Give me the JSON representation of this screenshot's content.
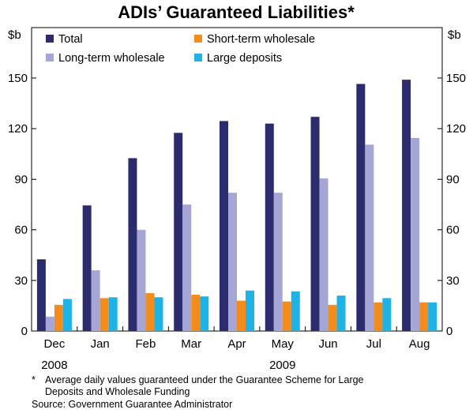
{
  "chart_data": {
    "type": "bar",
    "title": "ADIs’ Guaranteed Liabilities*",
    "unit_left": "$b",
    "unit_right": "$b",
    "ylim": [
      0,
      150
    ],
    "yticks": [
      0,
      30,
      60,
      90,
      120,
      150
    ],
    "categories": [
      "Dec",
      "Jan",
      "Feb",
      "Mar",
      "Apr",
      "May",
      "Jun",
      "Jul",
      "Aug"
    ],
    "year_labels": [
      {
        "label": "2008",
        "category_index": 0
      },
      {
        "label": "2009",
        "category_index": 5
      }
    ],
    "grid": false,
    "legend_position": "top-left",
    "series": [
      {
        "name": "Total",
        "color": "#2b2b6e",
        "values": [
          42.5,
          74.5,
          102.5,
          117.5,
          124.5,
          123,
          127,
          146.5,
          149
        ]
      },
      {
        "name": "Long-term wholesale",
        "color": "#a6a6d6",
        "values": [
          8.5,
          36,
          60,
          75,
          82,
          82,
          90.5,
          110.5,
          114.5
        ]
      },
      {
        "name": "Short-term wholesale",
        "color": "#f28c1c",
        "values": [
          15.5,
          19.5,
          22.5,
          21.5,
          18,
          17.5,
          15.5,
          17,
          17
        ]
      },
      {
        "name": "Large deposits",
        "color": "#1fb2e6",
        "values": [
          19,
          20,
          20,
          20.5,
          24,
          23.5,
          21,
          19.5,
          17
        ]
      }
    ]
  },
  "footnote": {
    "marker": "*",
    "text_line1": "Average daily values guaranteed under the Guarantee Scheme for Large",
    "text_line2": "Deposits and Wholesale Funding",
    "source": "Source: Government Guarantee Administrator"
  }
}
